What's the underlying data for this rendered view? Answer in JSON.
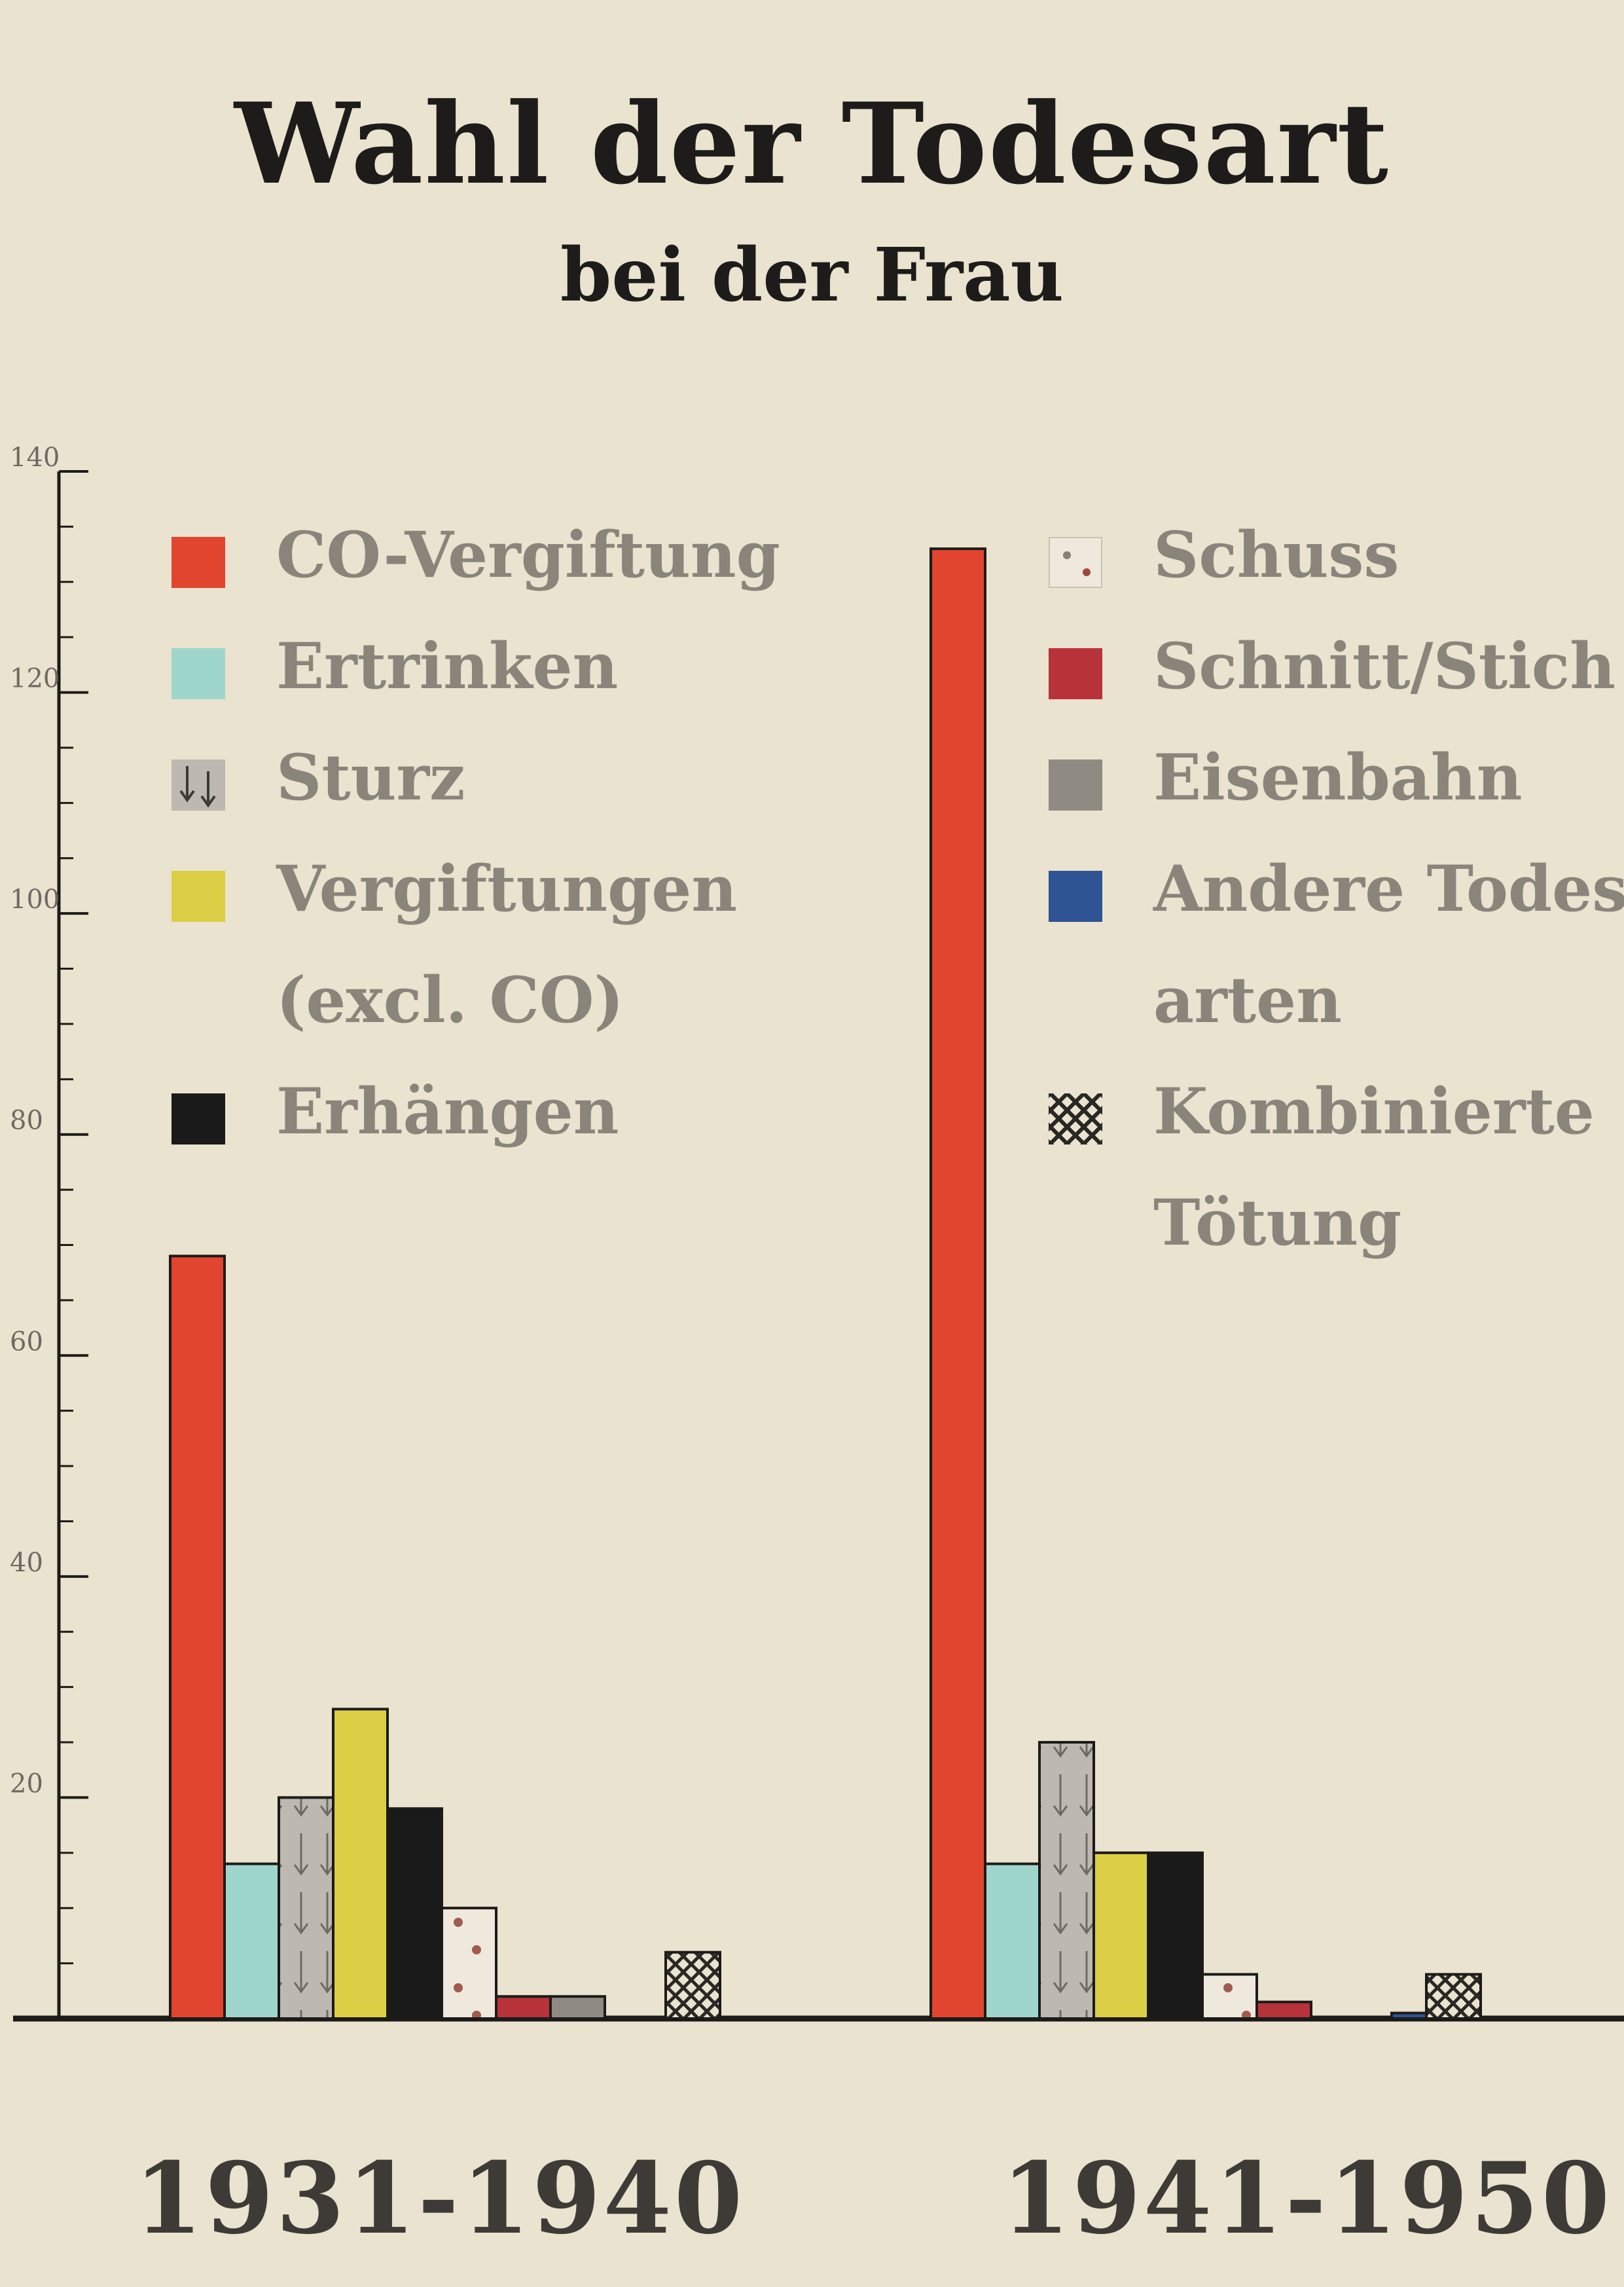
{
  "title": "Wahl der Todesart",
  "subtitle": "bei der Frau",
  "legend": [
    {
      "label": "CO-Vergiftung",
      "color": "#e2452f",
      "pattern": "solid"
    },
    {
      "label": "Ertrinken",
      "color": "#9fd6cc",
      "pattern": "solid"
    },
    {
      "label": "Sturz",
      "color": "#bdb9b0",
      "pattern": "down-arrows"
    },
    {
      "label": "Vergiftungen",
      "label2": "(excl. CO)",
      "color": "#dccf45",
      "pattern": "solid"
    },
    {
      "label": "Erhängen",
      "color": "#1b1a1a",
      "pattern": "solid"
    },
    {
      "label": "Schuss",
      "color": "#efe9dd",
      "pattern": "dots"
    },
    {
      "label": "Schnitt/Stich",
      "color": "#b8323a",
      "pattern": "solid"
    },
    {
      "label": "Eisenbahn",
      "color": "#8f8a82",
      "pattern": "solid"
    },
    {
      "label": "Andere Todes-",
      "label2": "arten",
      "color": "#2e5494",
      "pattern": "solid"
    },
    {
      "label": "Kombinierte",
      "label2": "Tötung",
      "color": "#e9e3cf",
      "pattern": "crosshatch"
    }
  ],
  "chart_data": {
    "type": "bar",
    "title": "Wahl der Todesart",
    "subtitle": "bei der Frau",
    "ylim": [
      0,
      140
    ],
    "y_ticks": [
      "20",
      "40",
      "60",
      "80",
      "100",
      "120",
      "140"
    ],
    "categories": [
      "1931-1940",
      "1941-1950"
    ],
    "series": [
      {
        "name": "CO-Vergiftung",
        "values": [
          69,
          133
        ]
      },
      {
        "name": "Ertrinken",
        "values": [
          14,
          14
        ]
      },
      {
        "name": "Sturz",
        "values": [
          20,
          25
        ]
      },
      {
        "name": "Vergiftungen (excl. CO)",
        "values": [
          28,
          15
        ]
      },
      {
        "name": "Erhängen",
        "values": [
          19,
          15
        ]
      },
      {
        "name": "Schuss",
        "values": [
          10,
          4
        ]
      },
      {
        "name": "Schnitt/Stich",
        "values": [
          2,
          1.5
        ]
      },
      {
        "name": "Eisenbahn",
        "values": [
          2,
          0
        ]
      },
      {
        "name": "Andere Todesarten",
        "values": [
          0,
          0.5
        ]
      },
      {
        "name": "Kombinierte Tötung",
        "values": [
          6,
          4
        ]
      }
    ],
    "grid": false,
    "legend_position": "top"
  }
}
